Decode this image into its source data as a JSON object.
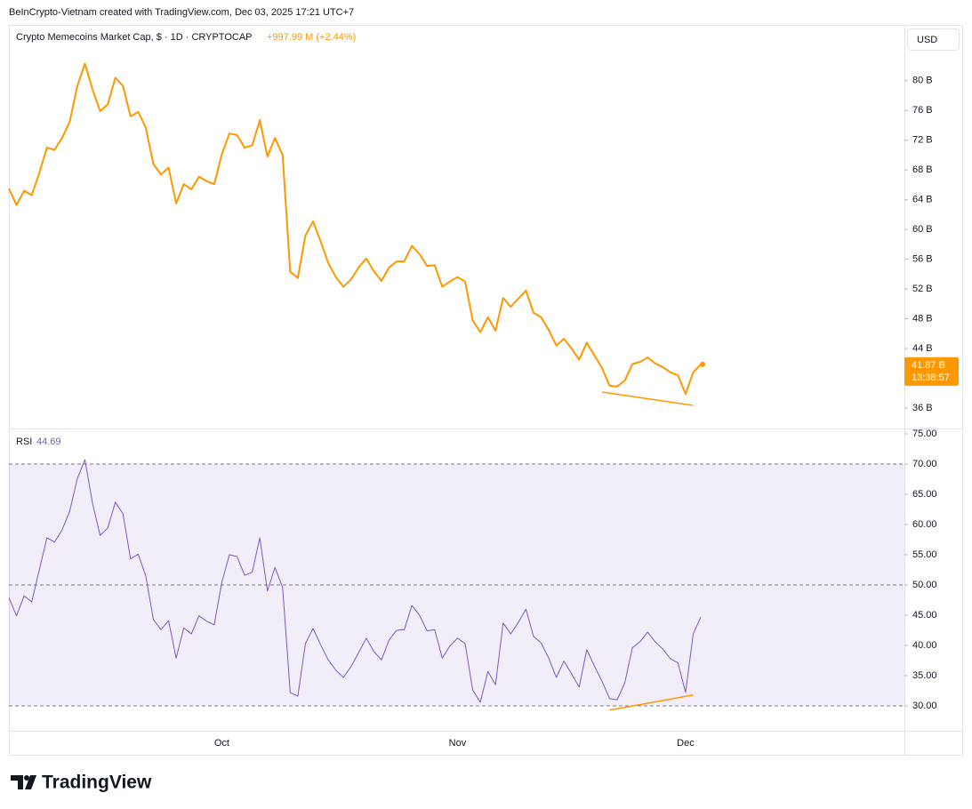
{
  "header": {
    "credit": "BeInCrypto-Vietnam created with TradingView.com, Dec 03, 2025 17:21 UTC+7"
  },
  "currency": "USD",
  "logo": "TradingView",
  "chart_data": [
    {
      "type": "line",
      "title": "Crypto Memecoins Market Cap, $ · 1D · CRYPTOCAP",
      "change": "+997.99 M (+2.44%)",
      "color": "#ff9800",
      "categories": [
        null,
        null,
        null,
        null,
        null,
        null,
        null,
        null,
        null,
        null,
        null,
        null,
        null,
        null,
        null,
        null,
        null,
        null,
        null,
        null,
        null,
        null,
        null,
        null,
        null,
        null,
        null,
        null,
        "Oct",
        null,
        null,
        null,
        null,
        null,
        null,
        null,
        null,
        null,
        null,
        null,
        null,
        null,
        null,
        null,
        null,
        null,
        null,
        null,
        null,
        null,
        null,
        null,
        null,
        null,
        null,
        null,
        null,
        null,
        null,
        "Nov",
        null,
        null,
        null,
        null,
        null,
        null,
        null,
        null,
        null,
        null,
        null,
        null,
        null,
        null,
        null,
        null,
        null,
        null,
        null,
        null,
        null,
        null,
        null,
        null,
        null,
        null,
        null,
        null,
        null,
        "Dec",
        null,
        null
      ],
      "values": [
        65.5,
        63.3,
        65.2,
        64.6,
        67.6,
        71.0,
        70.7,
        72.3,
        74.5,
        79.3,
        82.3,
        78.8,
        75.9,
        76.8,
        80.4,
        79.3,
        75.2,
        75.8,
        73.7,
        68.8,
        67.4,
        68.3,
        63.5,
        66.1,
        65.4,
        67.1,
        66.5,
        66.1,
        70.1,
        72.9,
        72.7,
        71.0,
        71.3,
        74.7,
        69.8,
        72.3,
        70.0,
        54.3,
        53.5,
        59.2,
        61.1,
        58.4,
        55.5,
        53.6,
        52.3,
        53.3,
        54.9,
        56.1,
        54.4,
        53.1,
        54.9,
        55.7,
        55.7,
        57.8,
        56.7,
        55.1,
        55.2,
        52.3,
        53.0,
        53.6,
        53.0,
        47.8,
        46.2,
        48.2,
        46.4,
        50.8,
        49.6,
        50.7,
        51.8,
        48.8,
        48.2,
        46.5,
        44.4,
        45.3,
        44.0,
        42.5,
        44.8,
        43.1,
        41.4,
        39.0,
        38.9,
        39.7,
        41.9,
        42.2,
        42.8,
        42.0,
        41.5,
        40.8,
        40.4,
        37.9,
        40.8,
        41.87
      ],
      "last_label": "41.87 B",
      "countdown": "13:38:57",
      "ylim": [
        33.25,
        87.5
      ],
      "yticks": [
        {
          "value": 36,
          "label": "36 B"
        },
        {
          "value": 44,
          "label": "44 B"
        },
        {
          "value": 48,
          "label": "48 B"
        },
        {
          "value": 52,
          "label": "52 B"
        },
        {
          "value": 56,
          "label": "56 B"
        },
        {
          "value": 60,
          "label": "60 B"
        },
        {
          "value": 64,
          "label": "64 B"
        },
        {
          "value": 68,
          "label": "68 B"
        },
        {
          "value": 72,
          "label": "72 B"
        },
        {
          "value": 76,
          "label": "76 B"
        },
        {
          "value": 80,
          "label": "80 B"
        }
      ],
      "trendline": {
        "x": [
          78,
          90
        ],
        "values": [
          38.15,
          36.35
        ]
      }
    },
    {
      "type": "line",
      "title": "RSI",
      "color": "#7e57c2",
      "values": [
        47.9,
        44.9,
        48.2,
        47.2,
        52.5,
        57.8,
        57.1,
        59.1,
        62.2,
        67.6,
        70.7,
        63.5,
        58.2,
        59.4,
        63.7,
        61.8,
        54.3,
        55.1,
        51.5,
        44.3,
        42.6,
        44.1,
        37.9,
        42.9,
        41.9,
        44.9,
        44.0,
        43.4,
        50.4,
        55.0,
        54.7,
        51.6,
        52.1,
        57.8,
        49.0,
        52.9,
        49.6,
        32.2,
        31.6,
        40.3,
        42.8,
        40.1,
        37.6,
        35.9,
        34.7,
        36.5,
        38.8,
        41.2,
        39.0,
        37.6,
        40.9,
        42.5,
        42.6,
        46.6,
        45.0,
        42.4,
        42.6,
        37.9,
        39.9,
        41.2,
        40.3,
        32.6,
        30.6,
        35.7,
        33.5,
        43.7,
        41.9,
        43.8,
        46.0,
        41.5,
        40.4,
        37.9,
        34.7,
        37.4,
        35.3,
        33.1,
        39.3,
        36.6,
        34.1,
        31.2,
        31.0,
        33.8,
        39.6,
        40.6,
        42.2,
        40.6,
        39.4,
        37.8,
        37.1,
        32.2,
        41.9,
        44.69
      ],
      "ylim": [
        25.88,
        75.88
      ],
      "yticks": [
        {
          "value": 30,
          "label": "30.00"
        },
        {
          "value": 35,
          "label": "35.00"
        },
        {
          "value": 40,
          "label": "40.00"
        },
        {
          "value": 45,
          "label": "45.00"
        },
        {
          "value": 50,
          "label": "50.00"
        },
        {
          "value": 55,
          "label": "55.00"
        },
        {
          "value": 60,
          "label": "60.00"
        },
        {
          "value": 65,
          "label": "65.00"
        },
        {
          "value": 70,
          "label": "70.00"
        },
        {
          "value": 75,
          "label": "75.00"
        }
      ],
      "band": [
        30,
        70
      ],
      "levels": [
        70,
        50,
        30
      ],
      "trendline": {
        "x": [
          79,
          90
        ],
        "values": [
          29.3,
          31.8
        ]
      }
    }
  ]
}
